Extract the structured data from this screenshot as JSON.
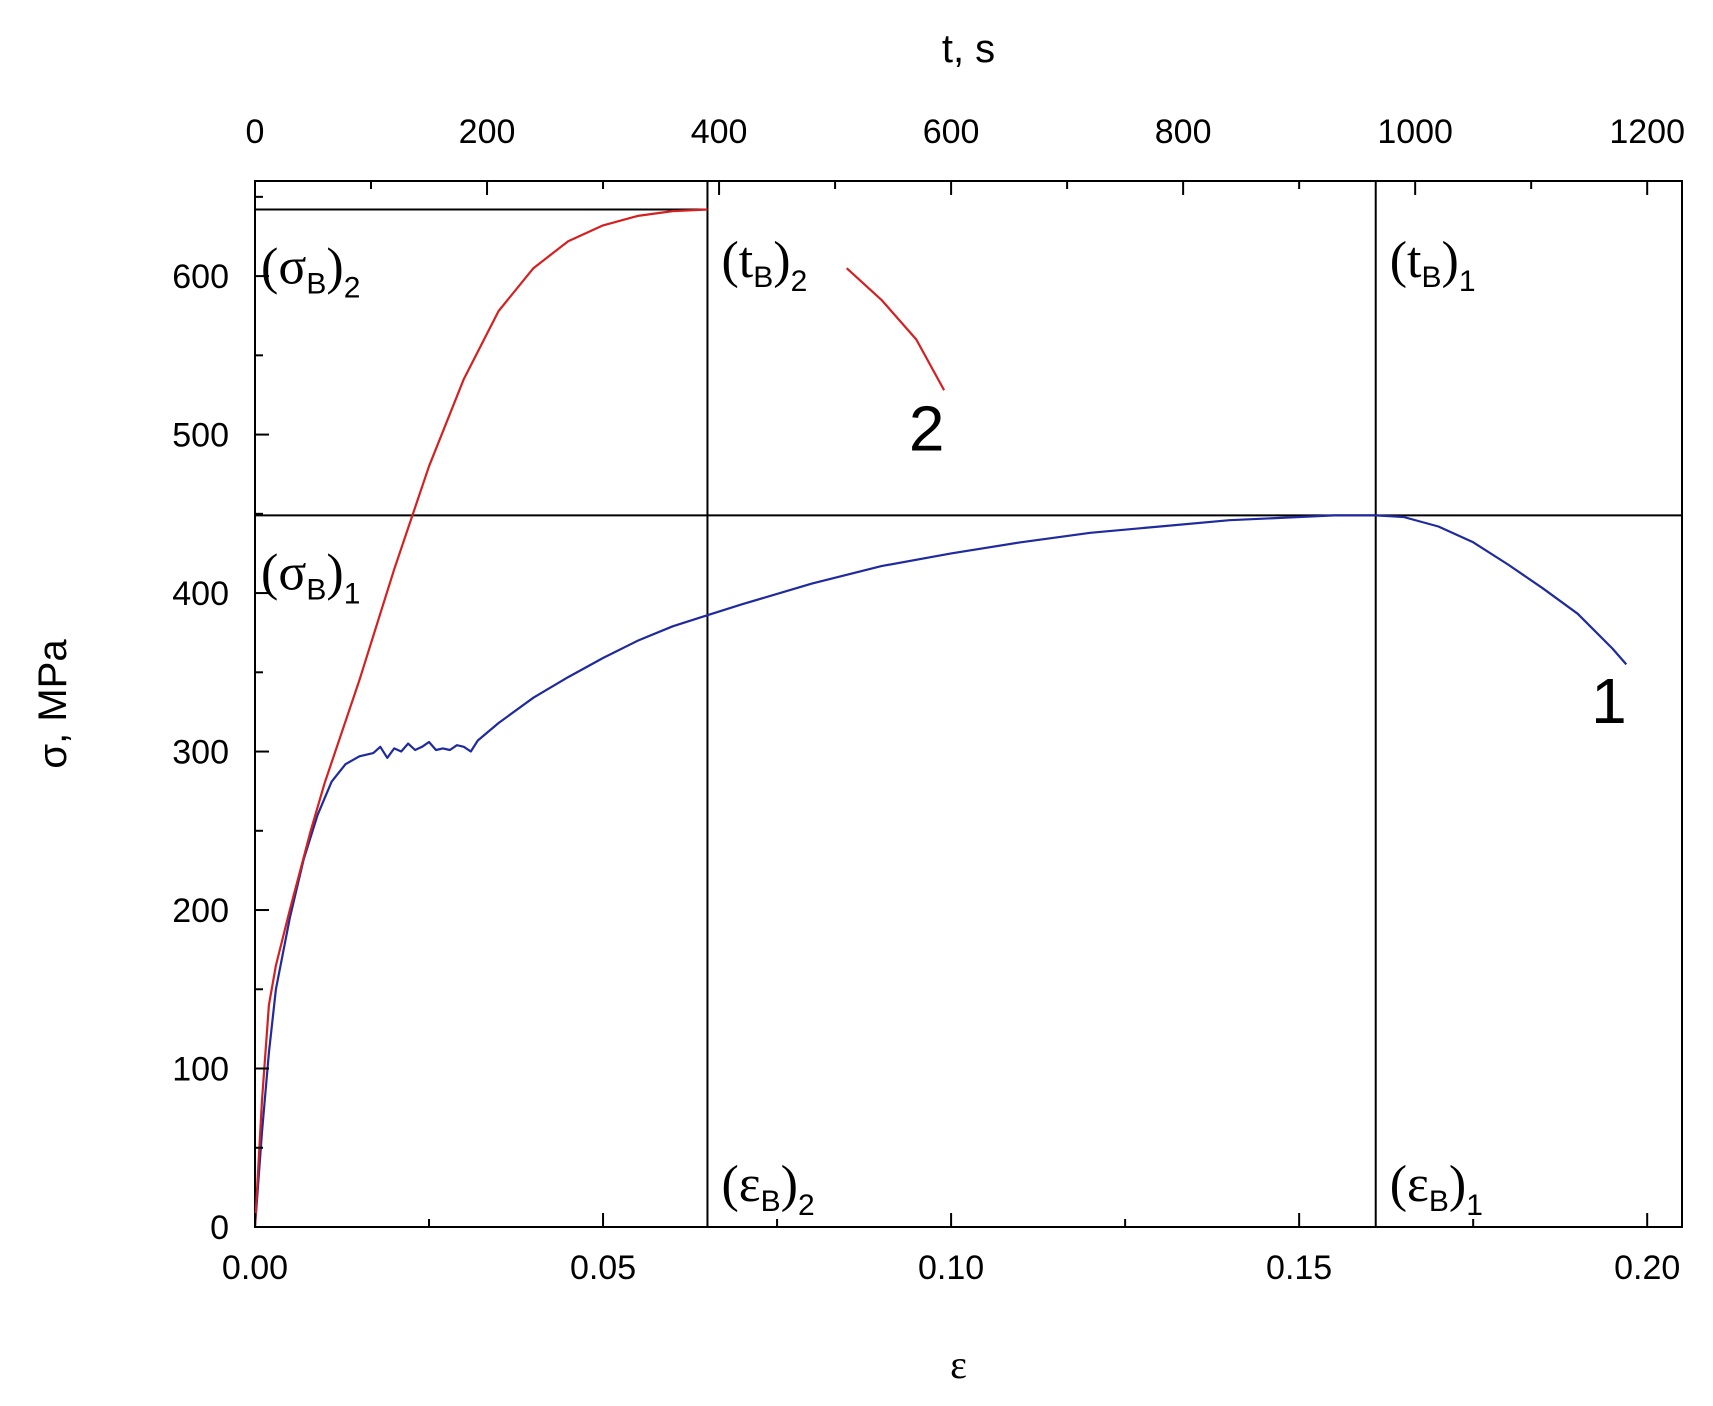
{
  "chart_data": {
    "type": "line",
    "xlabel": "ε",
    "ylabel": "σ, MPa",
    "x2label": "t, s",
    "xlim": [
      0.0,
      0.205
    ],
    "ylim": [
      0,
      660
    ],
    "x2lim": [
      0,
      1230
    ],
    "x_ticks": [
      0.0,
      0.05,
      0.1,
      0.15,
      0.2
    ],
    "x_tick_labels": [
      "0.00",
      "0.05",
      "0.10",
      "0.15",
      "0.20"
    ],
    "y_ticks": [
      0,
      100,
      200,
      300,
      400,
      500,
      600
    ],
    "y_tick_labels": [
      "0",
      "100",
      "200",
      "300",
      "400",
      "500",
      "600"
    ],
    "x2_ticks": [
      0,
      200,
      400,
      600,
      800,
      1000,
      1200
    ],
    "x2_tick_labels": [
      "0",
      "200",
      "400",
      "600",
      "800",
      "1000",
      "1200"
    ],
    "grid": false,
    "reference_lines": {
      "horizontal": [
        {
          "y": 642,
          "x_end": 0.065,
          "label_base": "(σ",
          "label_sub": "B",
          "label_close": ")",
          "label_index": "2"
        },
        {
          "y": 449,
          "x_end": 0.205,
          "label_base": "(σ",
          "label_sub": "B",
          "label_close": ")",
          "label_index": "1"
        }
      ],
      "vertical": [
        {
          "x": 0.065,
          "top_base": "(t",
          "top_sub": "B",
          "top_close": ")",
          "top_index": "2",
          "bottom_base": "(ε",
          "bottom_sub": "B",
          "bottom_close": ")",
          "bottom_index": "2"
        },
        {
          "x": 0.161,
          "top_base": "(t",
          "top_sub": "B",
          "top_close": ")",
          "top_index": "1",
          "bottom_base": "(ε",
          "bottom_sub": "B",
          "bottom_close": ")",
          "bottom_index": "1"
        }
      ]
    },
    "series": [
      {
        "label": "1",
        "color": "#1f2a9e",
        "x": [
          0.0,
          0.001,
          0.002,
          0.003,
          0.005,
          0.007,
          0.009,
          0.011,
          0.013,
          0.015,
          0.017,
          0.018,
          0.019,
          0.02,
          0.021,
          0.022,
          0.023,
          0.024,
          0.025,
          0.026,
          0.027,
          0.028,
          0.029,
          0.03,
          0.031,
          0.032,
          0.035,
          0.04,
          0.045,
          0.05,
          0.055,
          0.06,
          0.065,
          0.07,
          0.08,
          0.09,
          0.1,
          0.11,
          0.12,
          0.13,
          0.14,
          0.15,
          0.155,
          0.161,
          0.165,
          0.17,
          0.175,
          0.18,
          0.185,
          0.19,
          0.195,
          0.197
        ],
        "y": [
          0,
          60,
          110,
          150,
          195,
          232,
          260,
          281,
          292,
          297,
          299,
          303,
          296,
          302,
          300,
          305,
          301,
          303,
          306,
          301,
          302,
          301,
          304,
          303,
          300,
          307,
          318,
          334,
          347,
          359,
          370,
          379,
          386,
          393,
          406,
          417,
          425,
          432,
          438,
          442,
          446,
          448,
          449,
          449,
          448,
          442,
          432,
          418,
          403,
          387,
          365,
          355
        ]
      },
      {
        "label": "2",
        "color": "#d42020",
        "x": [
          0.0,
          0.001,
          0.002,
          0.003,
          0.005,
          0.008,
          0.01,
          0.015,
          0.02,
          0.025,
          0.03,
          0.035,
          0.04,
          0.045,
          0.05,
          0.055,
          0.06,
          0.065,
          0.085,
          0.09,
          0.095,
          0.099
        ],
        "y": [
          0,
          80,
          140,
          165,
          200,
          250,
          280,
          345,
          415,
          480,
          535,
          578,
          605,
          622,
          632,
          638,
          641,
          642,
          605,
          585,
          560,
          528
        ]
      }
    ]
  }
}
